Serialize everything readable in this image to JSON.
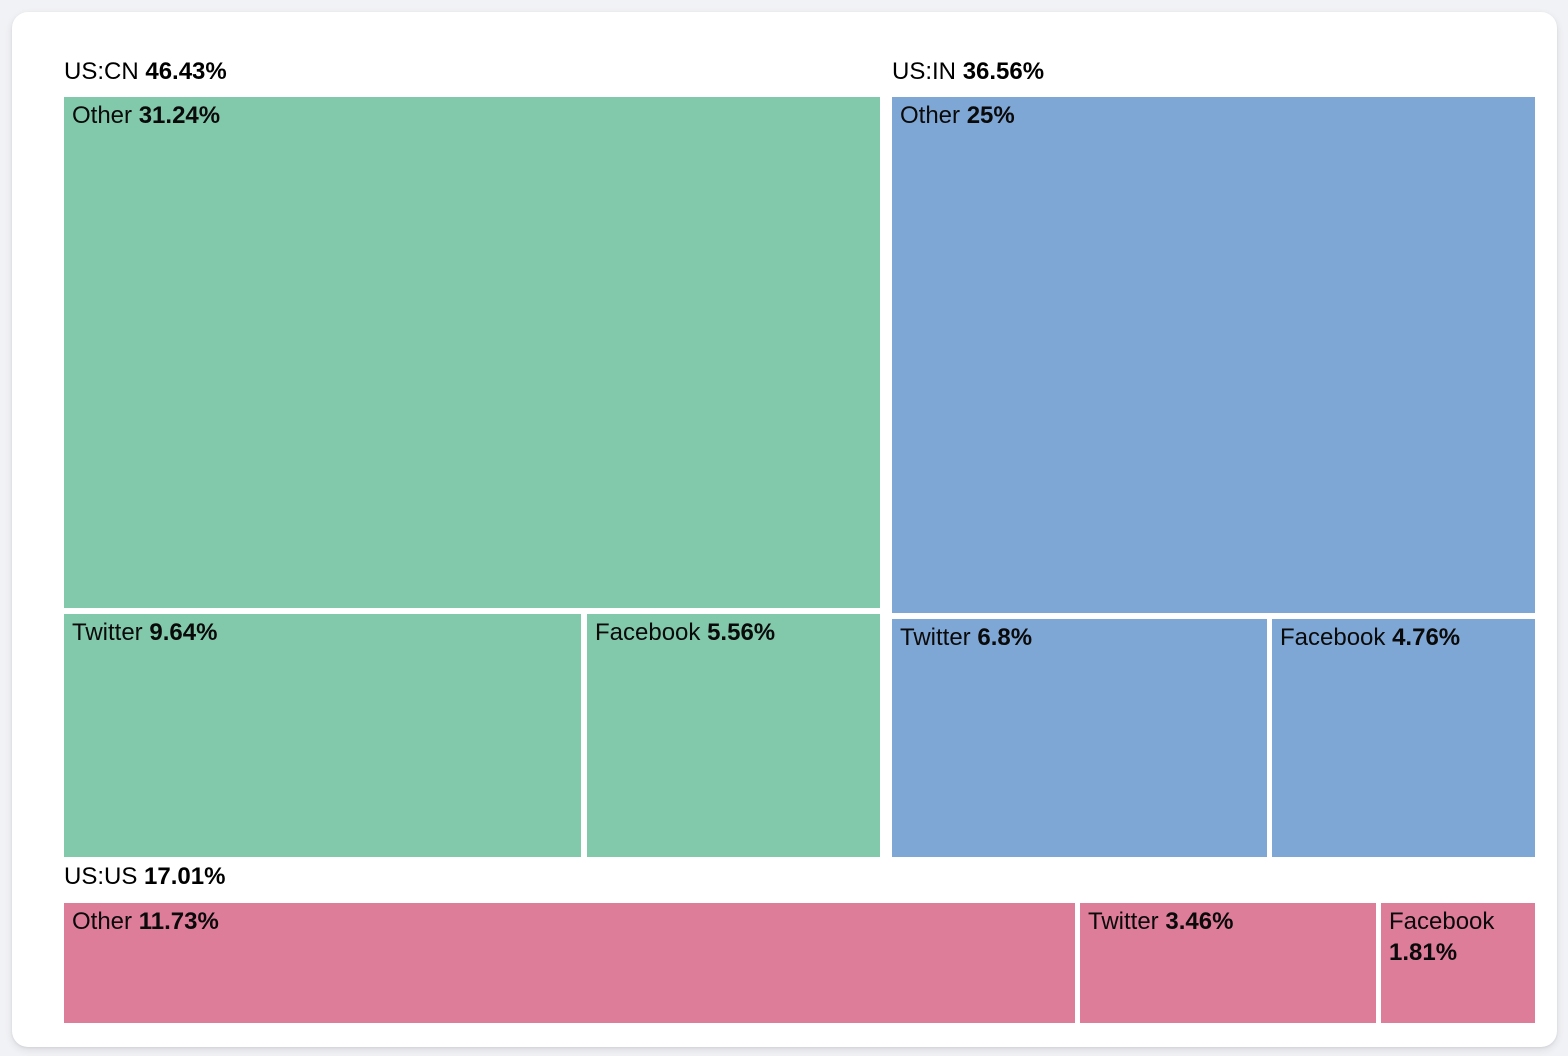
{
  "page": {
    "background_color": "#f1f2f5",
    "card_color": "#ffffff",
    "text_color": "#000000"
  },
  "chart_data": {
    "type": "treemap",
    "title": "",
    "unit": "%",
    "legend_position": "none",
    "grid": false,
    "groups": [
      {
        "label": "US:CN",
        "value": 46.43,
        "value_label": "46.43%",
        "color": "#82c9ac",
        "children": [
          {
            "label": "Other",
            "value": 31.24,
            "value_label": "31.24%"
          },
          {
            "label": "Twitter",
            "value": 9.64,
            "value_label": "9.64%"
          },
          {
            "label": "Facebook",
            "value": 5.56,
            "value_label": "5.56%"
          }
        ]
      },
      {
        "label": "US:IN",
        "value": 36.56,
        "value_label": "36.56%",
        "color": "#7fa7d5",
        "children": [
          {
            "label": "Other",
            "value": 25,
            "value_label": "25%"
          },
          {
            "label": "Twitter",
            "value": 6.8,
            "value_label": "6.8%"
          },
          {
            "label": "Facebook",
            "value": 4.76,
            "value_label": "4.76%"
          }
        ]
      },
      {
        "label": "US:US",
        "value": 17.01,
        "value_label": "17.01%",
        "color": "#de7d9a",
        "children": [
          {
            "label": "Other",
            "value": 11.73,
            "value_label": "11.73%"
          },
          {
            "label": "Twitter",
            "value": 3.46,
            "value_label": "3.46%"
          },
          {
            "label": "Facebook",
            "value": 1.81,
            "value_label": "1.81%"
          }
        ]
      }
    ]
  }
}
